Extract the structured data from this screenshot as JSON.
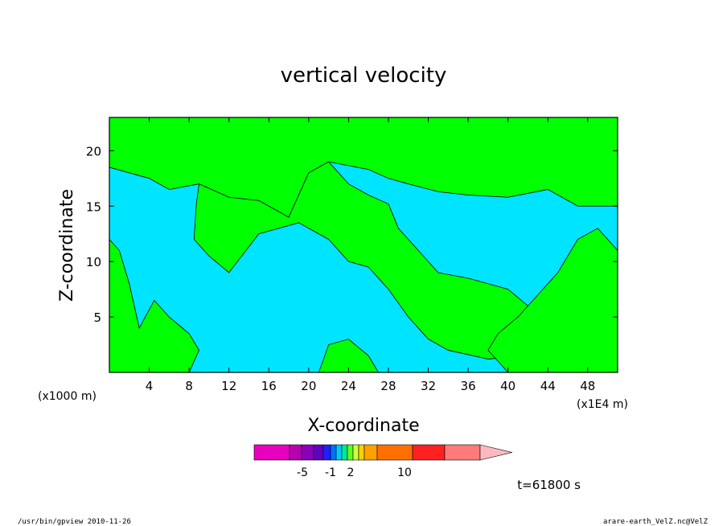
{
  "chart_data": {
    "type": "heatmap",
    "title": "vertical velocity",
    "xlabel": "X-coordinate",
    "ylabel": "Z-coordinate",
    "x_unit_left": "(x1000 m)",
    "x_unit_right": "(x1E4 m)",
    "xlim": [
      0,
      51
    ],
    "ylim": [
      0,
      23
    ],
    "x_ticks": [
      4,
      8,
      12,
      16,
      20,
      24,
      28,
      32,
      36,
      40,
      44,
      48
    ],
    "y_ticks": [
      5,
      10,
      15,
      20
    ],
    "regions": [
      {
        "name": "negative",
        "color": "#00e5ff"
      },
      {
        "name": "positive",
        "color": "#00ff00"
      }
    ],
    "colorbar": {
      "colors": [
        "#e800c0",
        "#b800b0",
        "#8a00b8",
        "#6000c0",
        "#2020ff",
        "#0070ff",
        "#00c8ff",
        "#00e896",
        "#60ff20",
        "#d0ff40",
        "#ffd000",
        "#ffa000",
        "#ff7000",
        "#ff2020",
        "#ff7a7a",
        "#ffb8c0"
      ],
      "tick_labels": [
        "-5",
        "-1",
        "2",
        "10"
      ]
    },
    "time_label": "t=61800 s"
  },
  "footer": {
    "left": "/usr/bin/gpview   2010-11-26",
    "right": "arare-earth_VelZ.nc@VelZ"
  }
}
